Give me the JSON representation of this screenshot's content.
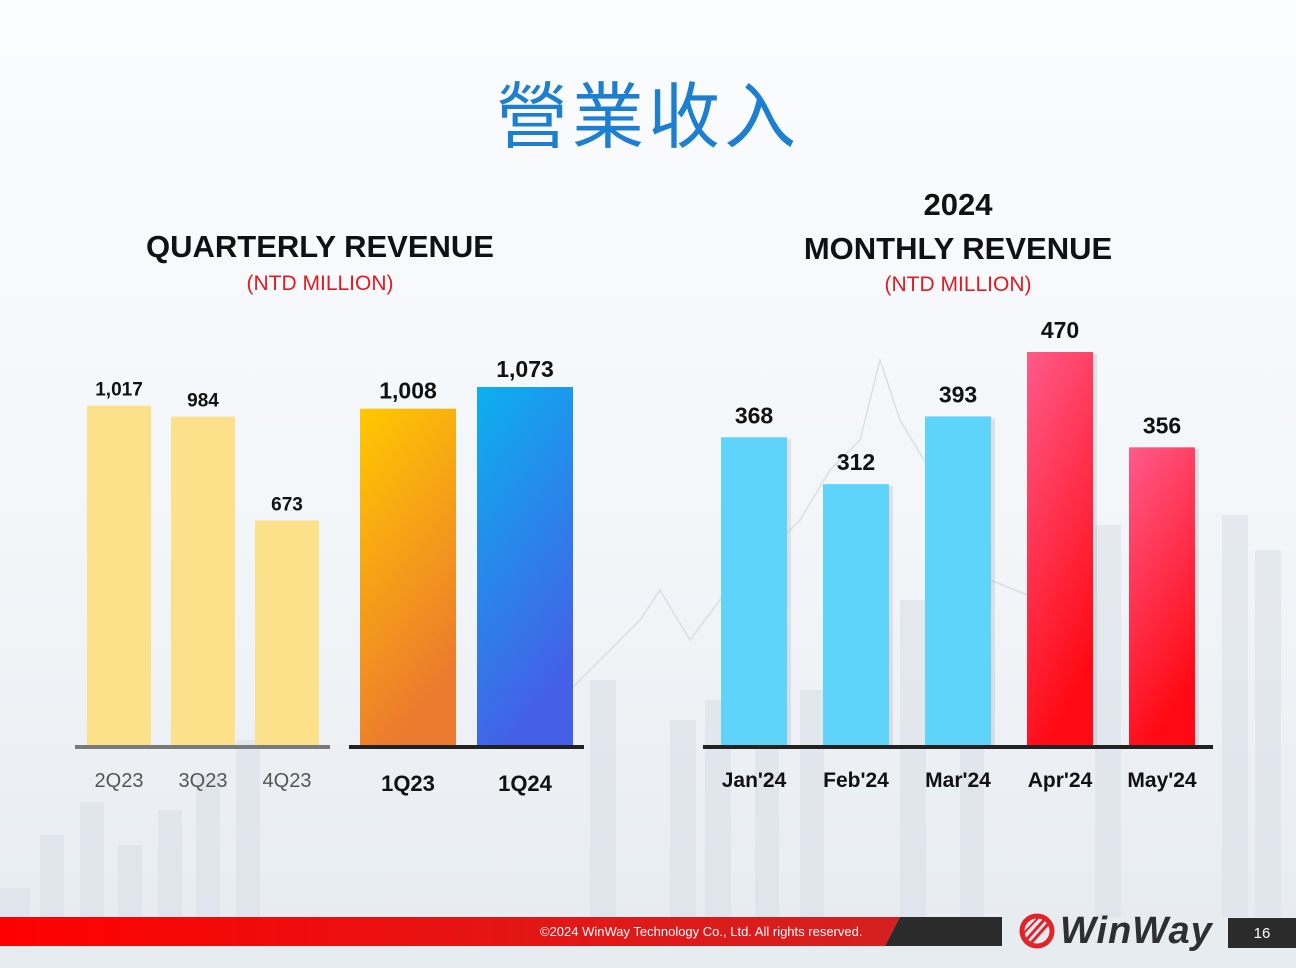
{
  "slide": {
    "title": "營業收入",
    "footer": {
      "copyright": "©2024 WinWay Technology Co., Ltd. All rights reserved.",
      "logo_text": "WinWay",
      "page_number": "16"
    },
    "colors": {
      "title_blue": "#1e7fd0",
      "unit_red": "#e01b24",
      "footer_red": "#e31616",
      "footer_dark": "#2b2b2b"
    }
  },
  "chart_data": [
    {
      "type": "bar",
      "title": "QUARTERLY REVENUE",
      "subtitle": "(NTD MILLION)",
      "xlabel": "",
      "ylabel": "",
      "grid": false,
      "groups": [
        {
          "name": "recent-quarters",
          "categories": [
            "2Q23",
            "3Q23",
            "4Q23"
          ],
          "values": [
            1017,
            984,
            673
          ],
          "labels": [
            "1,017",
            "984",
            "673"
          ],
          "color": "#fde08a"
        },
        {
          "name": "year-over-year",
          "categories": [
            "1Q23",
            "1Q24"
          ],
          "values": [
            1008,
            1073
          ],
          "labels": [
            "1,008",
            "1,073"
          ],
          "colors": [
            [
              "#ffc800",
              "#ec7a2e"
            ],
            [
              "#0bb0ef",
              "#4460e6"
            ]
          ]
        }
      ],
      "ylim": [
        0,
        1073
      ]
    },
    {
      "type": "bar",
      "title_line1": "2024",
      "title": "MONTHLY REVENUE",
      "subtitle": "(NTD MILLION)",
      "xlabel": "",
      "ylabel": "",
      "grid": false,
      "categories": [
        "Jan'24",
        "Feb'24",
        "Mar'24",
        "Apr'24",
        "May'24"
      ],
      "values": [
        368,
        312,
        393,
        470,
        356
      ],
      "labels": [
        "368",
        "312",
        "393",
        "470",
        "356"
      ],
      "colors": [
        "#5fd4fb",
        "#5fd4fb",
        "#5fd4fb",
        [
          "#ff5a8a",
          "#ff0a14"
        ],
        [
          "#ff5a8a",
          "#ff0a14"
        ]
      ],
      "ylim": [
        0,
        470
      ]
    }
  ]
}
